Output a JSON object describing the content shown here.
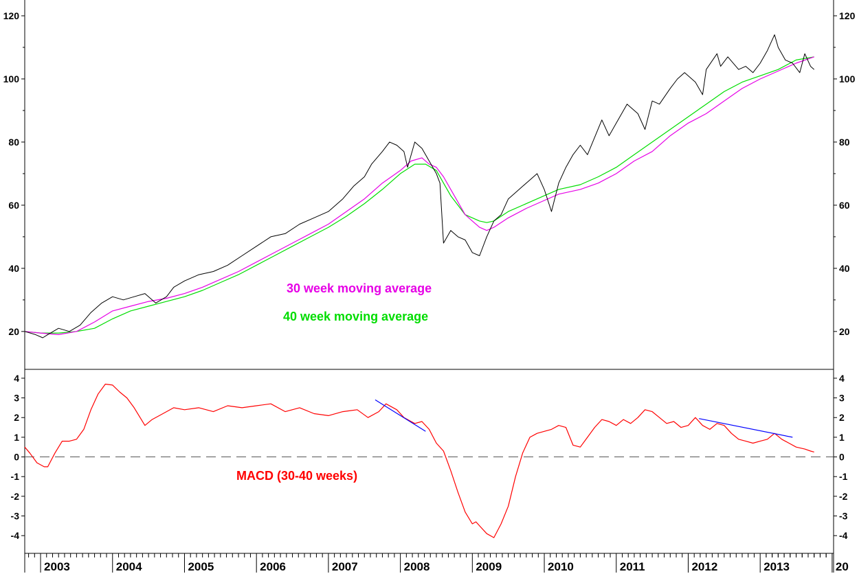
{
  "colors": {
    "price": "#000000",
    "ma30": "#e600e6",
    "ma40": "#00dd00",
    "macd": "#ff0000",
    "trendline": "#0000ff",
    "zero_line": "#555555"
  },
  "chart_data": [
    {
      "type": "line",
      "panel": "price",
      "ylim": [
        8,
        125
      ],
      "yticks": [
        20,
        40,
        60,
        80,
        100,
        120
      ],
      "ytick_labels": [
        "20",
        "40",
        "60",
        "80",
        "100",
        "120"
      ],
      "x_unit": "year",
      "xlim": [
        2002.78,
        2014.02
      ],
      "annotations": [
        {
          "text": "30 week moving average",
          "color": "#e600e6"
        },
        {
          "text": "40 week moving average",
          "color": "#00dd00"
        }
      ],
      "series": [
        {
          "name": "",
          "role": "price",
          "color": "#000000",
          "x": [
            2002.78,
            2002.93,
            2003.03,
            2003.1,
            2003.25,
            2003.4,
            2003.55,
            2003.7,
            2003.85,
            2004.0,
            2004.15,
            2004.3,
            2004.45,
            2004.6,
            2004.75,
            2004.85,
            2005.0,
            2005.2,
            2005.4,
            2005.6,
            2005.8,
            2006.0,
            2006.2,
            2006.4,
            2006.6,
            2006.8,
            2007.0,
            2007.2,
            2007.35,
            2007.5,
            2007.6,
            2007.75,
            2007.85,
            2007.95,
            2008.05,
            2008.1,
            2008.2,
            2008.3,
            2008.4,
            2008.5,
            2008.55,
            2008.6,
            2008.7,
            2008.8,
            2008.9,
            2009.0,
            2009.1,
            2009.2,
            2009.3,
            2009.4,
            2009.5,
            2009.6,
            2009.7,
            2009.8,
            2009.9,
            2010.0,
            2010.1,
            2010.2,
            2010.3,
            2010.4,
            2010.5,
            2010.6,
            2010.8,
            2010.9,
            2011.0,
            2011.15,
            2011.3,
            2011.4,
            2011.5,
            2011.6,
            2011.75,
            2011.85,
            2011.95,
            2012.1,
            2012.2,
            2012.25,
            2012.4,
            2012.45,
            2012.55,
            2012.7,
            2012.8,
            2012.9,
            2013.0,
            2013.1,
            2013.2,
            2013.25,
            2013.35,
            2013.45,
            2013.55,
            2013.62,
            2013.7,
            2013.75
          ],
          "y": [
            20,
            19,
            18,
            19,
            21,
            20,
            22,
            26,
            29,
            31,
            30,
            31,
            32,
            29,
            31,
            34,
            36,
            38,
            39,
            41,
            44,
            47,
            50,
            51,
            54,
            56,
            58,
            62,
            66,
            69,
            73,
            77,
            80,
            79,
            77,
            72,
            80,
            78,
            74,
            70,
            67,
            48,
            52,
            50,
            49,
            45,
            44,
            50,
            55,
            57,
            62,
            64,
            66,
            68,
            70,
            65,
            58,
            67,
            72,
            76,
            79,
            76,
            87,
            82,
            86,
            92,
            89,
            84,
            93,
            92,
            97,
            100,
            102,
            99,
            95,
            103,
            108,
            104,
            107,
            103,
            104,
            102,
            105,
            109,
            114,
            110,
            106,
            105,
            102,
            108,
            104,
            103
          ]
        },
        {
          "name": "30 week moving average",
          "role": "ma30",
          "color": "#e600e6",
          "x": [
            2002.78,
            2003.0,
            2003.25,
            2003.5,
            2003.75,
            2004.0,
            2004.25,
            2004.5,
            2004.75,
            2005.0,
            2005.25,
            2005.5,
            2005.75,
            2006.0,
            2006.25,
            2006.5,
            2006.75,
            2007.0,
            2007.25,
            2007.5,
            2007.75,
            2008.0,
            2008.15,
            2008.3,
            2008.4,
            2008.5,
            2008.6,
            2008.7,
            2008.8,
            2008.9,
            2009.0,
            2009.1,
            2009.2,
            2009.3,
            2009.5,
            2009.75,
            2010.0,
            2010.2,
            2010.5,
            2010.75,
            2011.0,
            2011.25,
            2011.5,
            2011.75,
            2012.0,
            2012.25,
            2012.5,
            2012.75,
            2013.0,
            2013.25,
            2013.5,
            2013.75
          ],
          "y": [
            20,
            19.5,
            19,
            20,
            23,
            26.5,
            28,
            29.5,
            30.5,
            32,
            34,
            36.5,
            39,
            42,
            45,
            48,
            51,
            54,
            58,
            62,
            67,
            71,
            74,
            75,
            73,
            72,
            69,
            65,
            61,
            57,
            55,
            53,
            52,
            53,
            56,
            59,
            61.5,
            63.5,
            65,
            67,
            70,
            74,
            77,
            82,
            86,
            89,
            93,
            97,
            100,
            102.5,
            105,
            107
          ]
        },
        {
          "name": "40 week moving average",
          "role": "ma40",
          "color": "#00dd00",
          "x": [
            2002.78,
            2003.0,
            2003.25,
            2003.5,
            2003.75,
            2004.0,
            2004.25,
            2004.5,
            2004.75,
            2005.0,
            2005.25,
            2005.5,
            2005.75,
            2006.0,
            2006.25,
            2006.5,
            2006.75,
            2007.0,
            2007.25,
            2007.5,
            2007.75,
            2008.0,
            2008.2,
            2008.35,
            2008.5,
            2008.6,
            2008.7,
            2008.8,
            2008.9,
            2009.0,
            2009.1,
            2009.2,
            2009.3,
            2009.5,
            2009.75,
            2010.0,
            2010.2,
            2010.5,
            2010.75,
            2011.0,
            2011.25,
            2011.5,
            2011.75,
            2012.0,
            2012.25,
            2012.5,
            2012.75,
            2013.0,
            2013.25,
            2013.5,
            2013.75
          ],
          "y": [
            20,
            19.5,
            19.5,
            20,
            21,
            24,
            26.5,
            28,
            29.5,
            31,
            33,
            35.5,
            38,
            41,
            44,
            47,
            50,
            53,
            56.5,
            60.5,
            65,
            70,
            73,
            73,
            71,
            67,
            63,
            60,
            57,
            56,
            55,
            54.5,
            55,
            58,
            60.5,
            63,
            65,
            66.5,
            69,
            72,
            76,
            80,
            84,
            88,
            92,
            96,
            99,
            101,
            103,
            106,
            107
          ]
        }
      ]
    },
    {
      "type": "line",
      "panel": "macd",
      "ylim": [
        -4.9,
        4.45
      ],
      "yticks": [
        -4,
        -3,
        -2,
        -1,
        0,
        1,
        2,
        3,
        4
      ],
      "ytick_labels": [
        "-4",
        "-3",
        "-2",
        "-1",
        "0",
        "1",
        "2",
        "3",
        "4"
      ],
      "zero_line": true,
      "annotations": [
        {
          "text": "MACD (30-40 weeks)",
          "color": "#ff0000"
        }
      ],
      "xlabels": [
        "2003",
        "2004",
        "2005",
        "2006",
        "2007",
        "2008",
        "2009",
        "2010",
        "2011",
        "2012",
        "2013",
        "20"
      ],
      "xlabel_positions": [
        2003,
        2004,
        2005,
        2006,
        2007,
        2008,
        2009,
        2010,
        2011,
        2012,
        2013,
        2014
      ],
      "series": [
        {
          "name": "MACD (30-40 weeks)",
          "role": "macd",
          "color": "#ff0000",
          "x": [
            2002.78,
            2002.85,
            2002.95,
            2003.05,
            2003.1,
            2003.2,
            2003.3,
            2003.4,
            2003.5,
            2003.6,
            2003.7,
            2003.8,
            2003.9,
            2004.0,
            2004.1,
            2004.2,
            2004.3,
            2004.45,
            2004.55,
            2004.7,
            2004.85,
            2005.0,
            2005.2,
            2005.4,
            2005.6,
            2005.8,
            2006.0,
            2006.2,
            2006.4,
            2006.6,
            2006.8,
            2007.0,
            2007.2,
            2007.4,
            2007.55,
            2007.7,
            2007.8,
            2007.95,
            2008.05,
            2008.15,
            2008.2,
            2008.3,
            2008.4,
            2008.5,
            2008.6,
            2008.7,
            2008.8,
            2008.9,
            2009.0,
            2009.05,
            2009.1,
            2009.2,
            2009.3,
            2009.4,
            2009.5,
            2009.6,
            2009.7,
            2009.8,
            2009.9,
            2010.0,
            2010.1,
            2010.2,
            2010.3,
            2010.4,
            2010.5,
            2010.6,
            2010.7,
            2010.8,
            2010.9,
            2011.0,
            2011.1,
            2011.2,
            2011.3,
            2011.4,
            2011.5,
            2011.6,
            2011.7,
            2011.8,
            2011.9,
            2012.0,
            2012.1,
            2012.2,
            2012.3,
            2012.4,
            2012.5,
            2012.6,
            2012.7,
            2012.8,
            2012.9,
            2013.0,
            2013.1,
            2013.2,
            2013.3,
            2013.4,
            2013.5,
            2013.62,
            2013.7,
            2013.75
          ],
          "y": [
            0.5,
            0.2,
            -0.3,
            -0.5,
            -0.5,
            0.2,
            0.8,
            0.8,
            0.9,
            1.4,
            2.4,
            3.2,
            3.7,
            3.65,
            3.3,
            3.0,
            2.5,
            1.6,
            1.9,
            2.2,
            2.5,
            2.4,
            2.5,
            2.3,
            2.6,
            2.5,
            2.6,
            2.7,
            2.3,
            2.5,
            2.2,
            2.1,
            2.3,
            2.4,
            2.0,
            2.3,
            2.7,
            2.4,
            2.0,
            1.8,
            1.7,
            1.8,
            1.4,
            0.7,
            0.3,
            -0.7,
            -1.8,
            -2.8,
            -3.4,
            -3.3,
            -3.5,
            -3.9,
            -4.1,
            -3.4,
            -2.5,
            -1.0,
            0.2,
            1.0,
            1.2,
            1.3,
            1.4,
            1.6,
            1.5,
            0.6,
            0.5,
            1.0,
            1.5,
            1.9,
            1.8,
            1.6,
            1.9,
            1.7,
            2.0,
            2.4,
            2.3,
            2.0,
            1.7,
            1.8,
            1.5,
            1.6,
            2.0,
            1.6,
            1.4,
            1.7,
            1.6,
            1.2,
            0.9,
            0.8,
            0.7,
            0.8,
            0.9,
            1.2,
            0.9,
            0.7,
            0.5,
            0.4,
            0.3,
            0.25
          ]
        },
        {
          "name": "",
          "role": "trendline",
          "color": "#0000ff",
          "x": [
            2007.65,
            2008.35
          ],
          "y": [
            2.9,
            1.3
          ]
        },
        {
          "name": "",
          "role": "trendline",
          "color": "#0000ff",
          "x": [
            2012.15,
            2013.45
          ],
          "y": [
            1.95,
            1.0
          ]
        }
      ]
    }
  ]
}
